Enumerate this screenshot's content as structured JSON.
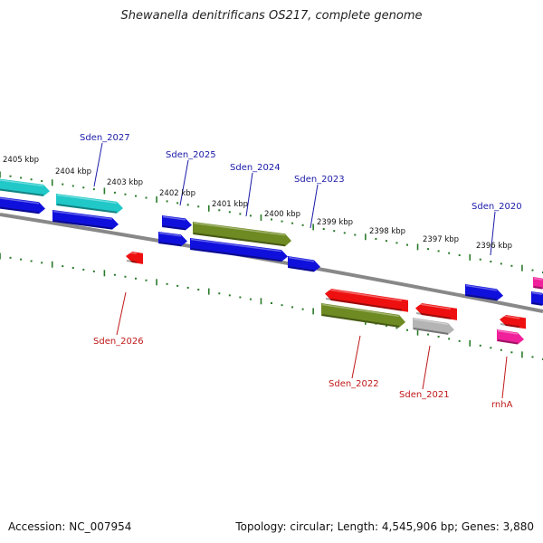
{
  "title": "Shewanella denitrificans OS217, complete genome",
  "footer": {
    "accession": "Accession: NC_007954",
    "summary": "Topology: circular; Length: 4,545,906 bp; Genes: 3,880"
  },
  "colors": {
    "backbone": "#888888",
    "scale_ticks": "#2a7a2a",
    "forward_label": "#1a1aa8",
    "reverse_label": "#c01818",
    "gene_blue": "#1010dd",
    "gene_cyan": "#20c8c8",
    "gene_olive": "#6e8a22",
    "gene_red": "#ee1010",
    "gene_gray": "#b4b4b4",
    "gene_pink": "#f0209a"
  },
  "scale_labels": [
    "2405 kbp",
    "2404 kbp",
    "2403 kbp",
    "2402 kbp",
    "2401 kbp",
    "2400 kbp",
    "2399 kbp",
    "2398 kbp",
    "2397 kbp",
    "2396 kbp"
  ],
  "forward_gene_labels": [
    "Sden_2027",
    "Sden_2025",
    "Sden_2024",
    "Sden_2023",
    "Sden_2020"
  ],
  "reverse_gene_labels": [
    "Sden_2026",
    "Sden_2022",
    "Sden_2021",
    "rnhA"
  ]
}
